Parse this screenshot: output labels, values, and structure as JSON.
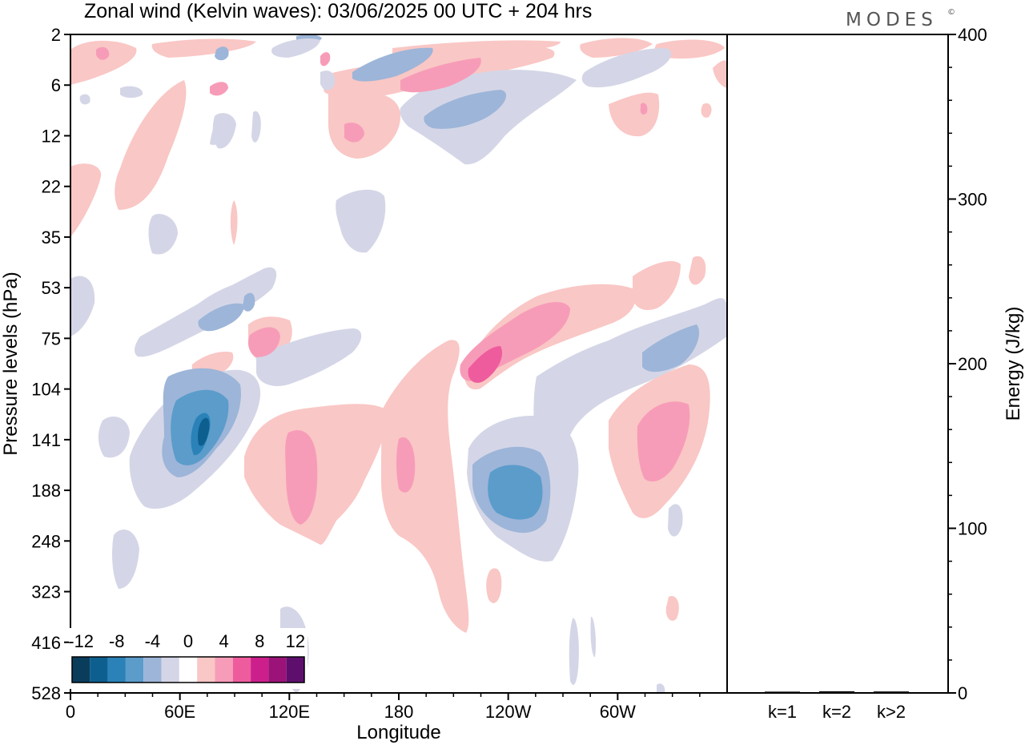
{
  "title": "Zonal wind (Kelvin waves):  03/06/2025  00 UTC  + 204 hrs",
  "logo": "MODES",
  "logo_mark": "©",
  "colors": {
    "neg_12": "#0a3d5c",
    "neg_10": "#0d5f8f",
    "neg_8": "#2a82b8",
    "neg_6": "#5b9ccb",
    "neg_4": "#9db5d8",
    "neg_2": "#d4d6e7",
    "zero": "#ffffff",
    "pos_2": "#f9c7c5",
    "pos_4": "#f79cb8",
    "pos_6": "#ee5c9e",
    "pos_8": "#cc1f8c",
    "pos_10": "#9b1378",
    "pos_12": "#5e0f6e"
  },
  "chart_data": [
    {
      "type": "heatmap",
      "title": "Zonal wind (Kelvin waves):  03/06/2025  00 UTC  + 204 hrs",
      "xlabel": "Longitude",
      "ylabel": "Pressure levels (hPa)",
      "x_ticks": [
        "0",
        "60E",
        "120E",
        "180",
        "120W",
        "60W"
      ],
      "x_tick_values": [
        0,
        60,
        120,
        180,
        240,
        300
      ],
      "xlim": [
        0,
        360
      ],
      "y_ticks": [
        "2",
        "6",
        "12",
        "22",
        "35",
        "53",
        "75",
        "104",
        "141",
        "188",
        "248",
        "323",
        "416",
        "528"
      ],
      "y_scale": "level-index",
      "colorbar": {
        "labels": [
          "-12",
          "-8",
          "-4",
          "0",
          "4",
          "8",
          "12"
        ],
        "levels": [
          -12,
          -10,
          -8,
          -6,
          -4,
          -2,
          0,
          2,
          4,
          6,
          8,
          10,
          12
        ],
        "placement": "bottom-left"
      },
      "features": [
        {
          "lon": 77,
          "level": 141,
          "value": -11
        },
        {
          "lon": 73,
          "level": 141,
          "value": -8
        },
        {
          "lon": 235,
          "level": 188,
          "value": -8
        },
        {
          "lon": 225,
          "level": 104,
          "value": 7
        },
        {
          "lon": 130,
          "level": 141,
          "value": 4
        },
        {
          "lon": 320,
          "level": 141,
          "value": 5
        },
        {
          "lon": 103,
          "level": 75,
          "value": 4
        },
        {
          "lon": 315,
          "level": 75,
          "value": -4
        },
        {
          "lon": 185,
          "level": 188,
          "value": 4
        }
      ]
    },
    {
      "type": "bar",
      "categories": [
        "k=1",
        "k=2",
        "k>2"
      ],
      "values": [
        0.3,
        0.5,
        0.4
      ],
      "ylabel": "Energy (J/kg)",
      "ylim": [
        0,
        400
      ],
      "y_ticks": [
        "0",
        "100",
        "200",
        "300",
        "400"
      ]
    }
  ]
}
